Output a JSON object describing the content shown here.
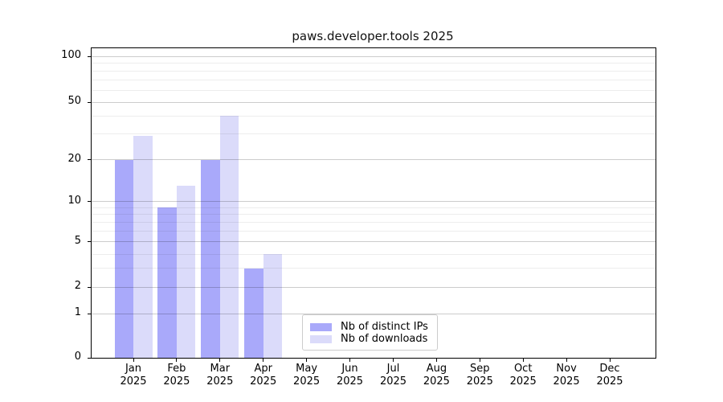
{
  "title": "paws.developer.tools 2025",
  "colors": {
    "ips_bar": "#a9a9fa",
    "downloads_bar": "#dbdbfa",
    "grid_major": "rgba(0,0,0,0.20)",
    "grid_minor": "rgba(0,0,0,0.07)",
    "spine": "#000000",
    "background": "#ffffff"
  },
  "legend": {
    "position": "inside-bottom-center-left",
    "items": [
      {
        "label": "Nb of distinct IPs",
        "color": "#a9a9fa"
      },
      {
        "label": "Nb of downloads",
        "color": "#dbdbfa"
      }
    ]
  },
  "chart_data": {
    "type": "bar",
    "title": "paws.developer.tools 2025",
    "categories": [
      "Jan",
      "Feb",
      "Mar",
      "Apr",
      "May",
      "Jun",
      "Jul",
      "Aug",
      "Sep",
      "Oct",
      "Nov",
      "Dec"
    ],
    "category_year": "2025",
    "series": [
      {
        "name": "Nb of distinct IPs",
        "values": [
          20,
          9,
          20,
          3,
          0,
          0,
          0,
          0,
          0,
          0,
          0,
          0
        ]
      },
      {
        "name": "Nb of downloads",
        "values": [
          29,
          13,
          40,
          4,
          0,
          0,
          0,
          0,
          0,
          0,
          0,
          0
        ]
      }
    ],
    "xlabel": "",
    "ylabel": "",
    "grid": true,
    "yscale": "log-like (nonlinear, 0 at baseline)",
    "ylim": [
      0,
      113
    ],
    "yticks_major": [
      0,
      1,
      2,
      5,
      10,
      20,
      50,
      100
    ],
    "yticks_minor": [
      3,
      4,
      6,
      7,
      8,
      9,
      30,
      40,
      60,
      70,
      80,
      90
    ],
    "ytick_axis_fractions": {
      "0": 0.0,
      "1": 0.1429,
      "2": 0.2286,
      "3": 0.2891,
      "4": 0.3351,
      "5": 0.3753,
      "6": 0.4095,
      "7": 0.4384,
      "8": 0.4634,
      "9": 0.4855,
      "10": 0.5052,
      "20": 0.6403,
      "30": 0.7229,
      "40": 0.781,
      "50": 0.826,
      "60": 0.8649,
      "70": 0.8978,
      "80": 0.9263,
      "90": 0.9515,
      "100": 0.974
    }
  }
}
